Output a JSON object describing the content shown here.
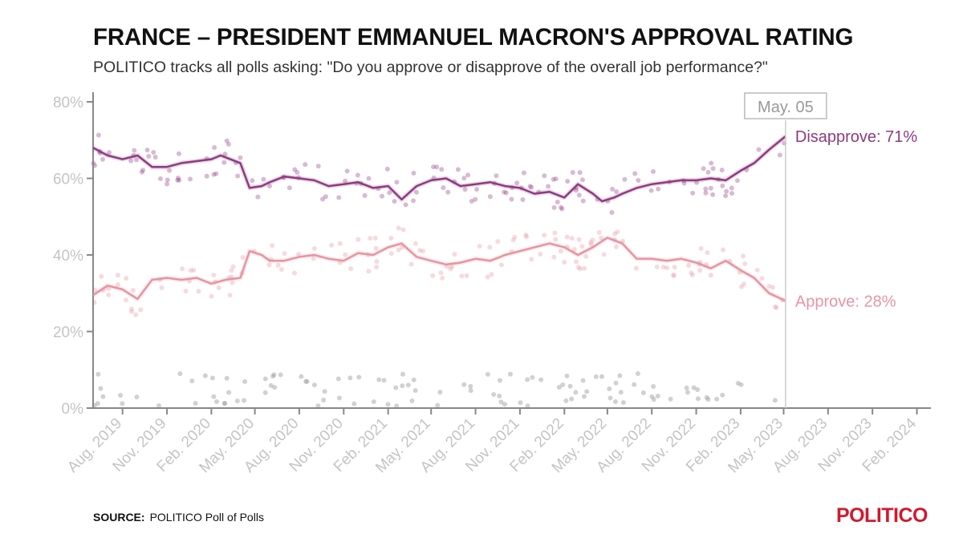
{
  "header": {
    "title": "FRANCE – PRESIDENT EMMANUEL MACRON'S APPROVAL RATING",
    "subtitle": "POLITICO tracks all polls asking: \"Do you approve or disapprove of the overall job performance?\""
  },
  "footer": {
    "source_label": "SOURCE:",
    "source_text": "POLITICO Poll of Polls",
    "logo": "POLITICO"
  },
  "chart_data": {
    "type": "line",
    "title": "FRANCE – PRESIDENT EMMANUEL MACRON'S APPROVAL RATING",
    "subtitle": "POLITICO tracks all polls asking: \"Do you approve or disapprove of the overall job performance?\"",
    "xlabel": "",
    "ylabel": "",
    "ylim": [
      0,
      80
    ],
    "xlim": [
      "2019-06-01",
      "2024-03-01"
    ],
    "yticks": [
      0,
      20,
      40,
      60,
      80
    ],
    "ytick_labels": [
      "0%",
      "20%",
      "40%",
      "60%",
      "80%"
    ],
    "xticks": [
      "2019-08-01",
      "2019-11-01",
      "2020-02-01",
      "2020-05-01",
      "2020-08-01",
      "2020-11-01",
      "2021-02-01",
      "2021-05-01",
      "2021-08-01",
      "2021-11-01",
      "2022-02-01",
      "2022-05-01",
      "2022-08-01",
      "2022-11-01",
      "2023-02-01",
      "2023-05-01",
      "2023-08-01",
      "2023-11-01",
      "2024-02-01"
    ],
    "xtick_labels": [
      "Aug. 2019",
      "Nov. 2019",
      "Feb. 2020",
      "May. 2020",
      "Aug. 2020",
      "Nov. 2020",
      "Feb. 2021",
      "May. 2021",
      "Aug. 2021",
      "Nov. 2021",
      "Feb. 2022",
      "May. 2022",
      "Aug. 2022",
      "Nov. 2022",
      "Feb. 2023",
      "May. 2023",
      "Aug. 2023",
      "Nov. 2023",
      "Feb. 2024"
    ],
    "marker": {
      "date": "2023-05-05",
      "label": "May. 05"
    },
    "series": [
      {
        "name": "Disapprove",
        "end_label": "Disapprove: 71%",
        "color": "#8e3a80",
        "points": [
          [
            "2019-06-01",
            68
          ],
          [
            "2019-07-01",
            66
          ],
          [
            "2019-08-01",
            65
          ],
          [
            "2019-09-01",
            66
          ],
          [
            "2019-10-01",
            63
          ],
          [
            "2019-11-01",
            63
          ],
          [
            "2019-12-01",
            64
          ],
          [
            "2020-01-01",
            64.5
          ],
          [
            "2020-02-01",
            65
          ],
          [
            "2020-02-20",
            66
          ],
          [
            "2020-03-01",
            65.5
          ],
          [
            "2020-04-01",
            64
          ],
          [
            "2020-04-20",
            57.5
          ],
          [
            "2020-05-15",
            58
          ],
          [
            "2020-06-01",
            59
          ],
          [
            "2020-07-01",
            60.5
          ],
          [
            "2020-08-01",
            60
          ],
          [
            "2020-09-01",
            59.5
          ],
          [
            "2020-10-01",
            58
          ],
          [
            "2020-11-01",
            58.5
          ],
          [
            "2020-12-01",
            59
          ],
          [
            "2021-01-01",
            57.5
          ],
          [
            "2021-02-01",
            58
          ],
          [
            "2021-03-01",
            54.5
          ],
          [
            "2021-04-01",
            58
          ],
          [
            "2021-05-01",
            59.5
          ],
          [
            "2021-06-01",
            60
          ],
          [
            "2021-07-01",
            58
          ],
          [
            "2021-08-01",
            58.5
          ],
          [
            "2021-09-01",
            59
          ],
          [
            "2021-10-01",
            58
          ],
          [
            "2021-11-01",
            57.5
          ],
          [
            "2021-12-01",
            56
          ],
          [
            "2022-01-01",
            56.5
          ],
          [
            "2022-02-01",
            55
          ],
          [
            "2022-03-01",
            58.5
          ],
          [
            "2022-04-01",
            56
          ],
          [
            "2022-04-20",
            54
          ],
          [
            "2022-05-15",
            55
          ],
          [
            "2022-06-01",
            56
          ],
          [
            "2022-07-01",
            57.5
          ],
          [
            "2022-08-01",
            58.5
          ],
          [
            "2022-09-01",
            59
          ],
          [
            "2022-10-01",
            59.5
          ],
          [
            "2022-11-01",
            59.5
          ],
          [
            "2022-12-01",
            60
          ],
          [
            "2023-01-01",
            59.5
          ],
          [
            "2023-02-01",
            62
          ],
          [
            "2023-03-01",
            64
          ],
          [
            "2023-04-01",
            67.5
          ],
          [
            "2023-05-05",
            71
          ]
        ]
      },
      {
        "name": "Approve",
        "end_label": "Approve: 28%",
        "color": "#e595a1",
        "points": [
          [
            "2019-06-01",
            29.5
          ],
          [
            "2019-07-01",
            32
          ],
          [
            "2019-08-01",
            31
          ],
          [
            "2019-09-01",
            28.5
          ],
          [
            "2019-10-01",
            33.5
          ],
          [
            "2019-11-01",
            34
          ],
          [
            "2019-12-01",
            33.5
          ],
          [
            "2020-01-01",
            34
          ],
          [
            "2020-02-01",
            32.5
          ],
          [
            "2020-03-01",
            33.5
          ],
          [
            "2020-04-01",
            34
          ],
          [
            "2020-04-20",
            41
          ],
          [
            "2020-05-15",
            40
          ],
          [
            "2020-06-01",
            38.5
          ],
          [
            "2020-07-01",
            38.5
          ],
          [
            "2020-08-01",
            39.5
          ],
          [
            "2020-09-01",
            40
          ],
          [
            "2020-10-01",
            39
          ],
          [
            "2020-11-01",
            38.5
          ],
          [
            "2020-12-01",
            40.5
          ],
          [
            "2021-01-01",
            40
          ],
          [
            "2021-02-01",
            42
          ],
          [
            "2021-03-01",
            43
          ],
          [
            "2021-04-01",
            39.5
          ],
          [
            "2021-05-01",
            38.5
          ],
          [
            "2021-06-01",
            37.5
          ],
          [
            "2021-07-01",
            38
          ],
          [
            "2021-08-01",
            39
          ],
          [
            "2021-09-01",
            38.5
          ],
          [
            "2021-10-01",
            40
          ],
          [
            "2021-11-01",
            41
          ],
          [
            "2021-12-01",
            42
          ],
          [
            "2022-01-01",
            43
          ],
          [
            "2022-02-01",
            42
          ],
          [
            "2022-03-01",
            40
          ],
          [
            "2022-04-01",
            42
          ],
          [
            "2022-05-01",
            44.5
          ],
          [
            "2022-06-01",
            43
          ],
          [
            "2022-07-01",
            39
          ],
          [
            "2022-08-01",
            39
          ],
          [
            "2022-09-01",
            38.5
          ],
          [
            "2022-10-01",
            39
          ],
          [
            "2022-11-01",
            38
          ],
          [
            "2022-12-01",
            36.5
          ],
          [
            "2023-01-01",
            38.5
          ],
          [
            "2023-02-01",
            36
          ],
          [
            "2023-03-01",
            34
          ],
          [
            "2023-04-01",
            30
          ],
          [
            "2023-05-05",
            28
          ]
        ]
      }
    ],
    "style": {
      "axis_color": "#888888",
      "tick_label_color": "#c4c4c4",
      "marker_line_color": "#cccccc",
      "marker_label_color": "#999999",
      "no_opinion_dot_color": "#9a9a9a"
    },
    "grid": false
  }
}
